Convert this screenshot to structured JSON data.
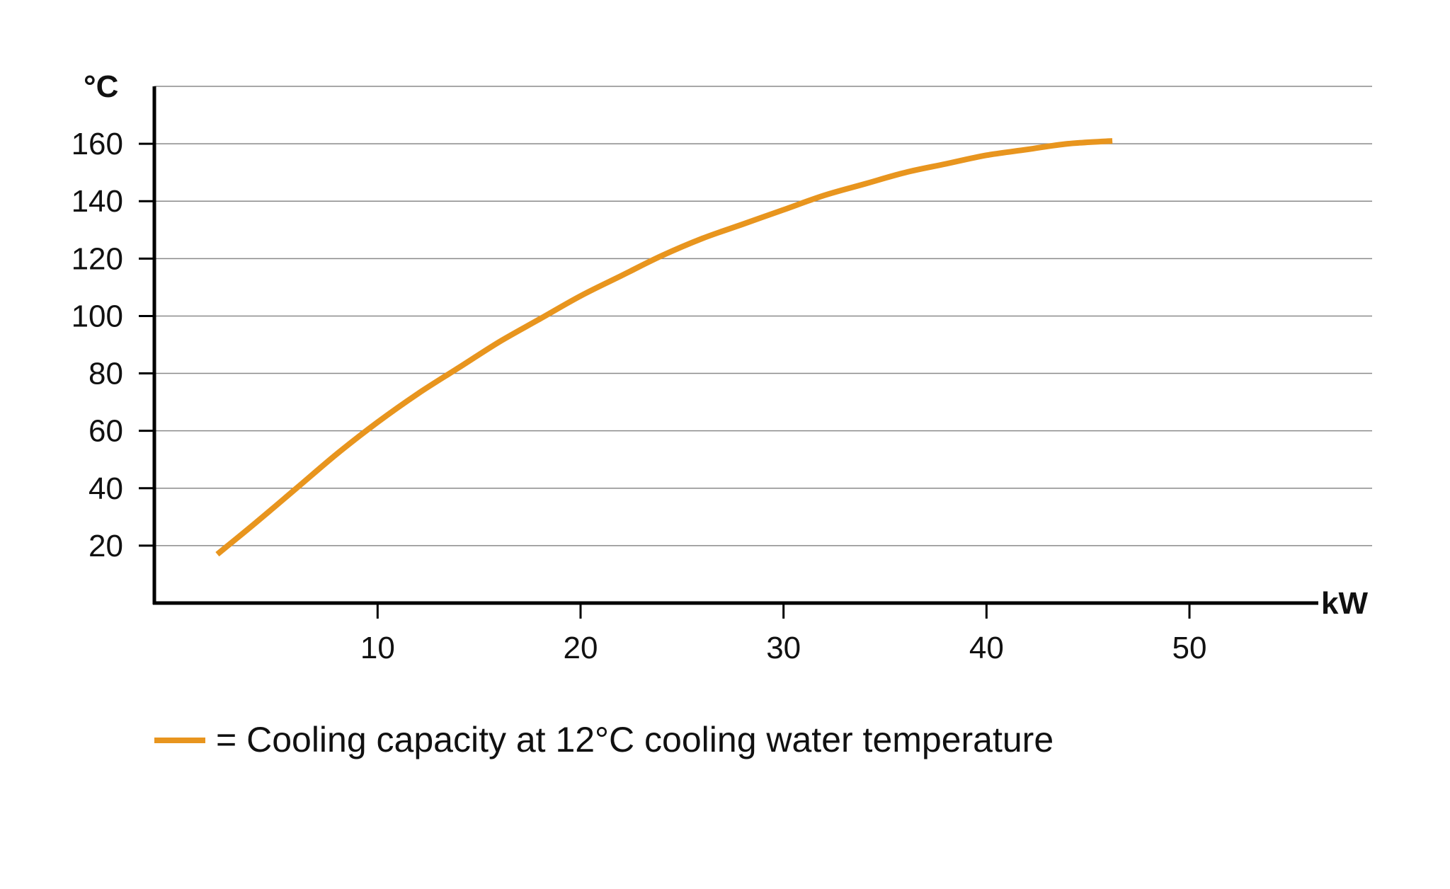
{
  "chart_data": {
    "type": "line",
    "title": "",
    "xlabel": "kW",
    "ylabel": "°C",
    "xlim": [
      -1,
      59
    ],
    "ylim": [
      0,
      180
    ],
    "x_ticks": [
      10,
      20,
      30,
      40,
      50
    ],
    "y_ticks": [
      20,
      40,
      60,
      80,
      100,
      120,
      140,
      160
    ],
    "grid": "horizontal",
    "legend_position": "bottom-left",
    "series": [
      {
        "name": "Cooling capacity at 12°C cooling water temperature",
        "color": "#e8951e",
        "x": [
          2.1,
          4,
          6,
          8,
          10,
          12,
          14,
          16,
          18,
          20,
          22,
          24,
          26,
          28,
          30,
          32,
          34,
          36,
          38,
          40,
          42,
          44,
          46.2
        ],
        "y": [
          17,
          28,
          40,
          52,
          63,
          73,
          82,
          91,
          99,
          107,
          114,
          121,
          127,
          132,
          137,
          142,
          146,
          150,
          153,
          156,
          158,
          160,
          161
        ]
      }
    ],
    "legend": {
      "prefix": "=",
      "label": "Cooling capacity at 12°C cooling water temperature"
    }
  }
}
